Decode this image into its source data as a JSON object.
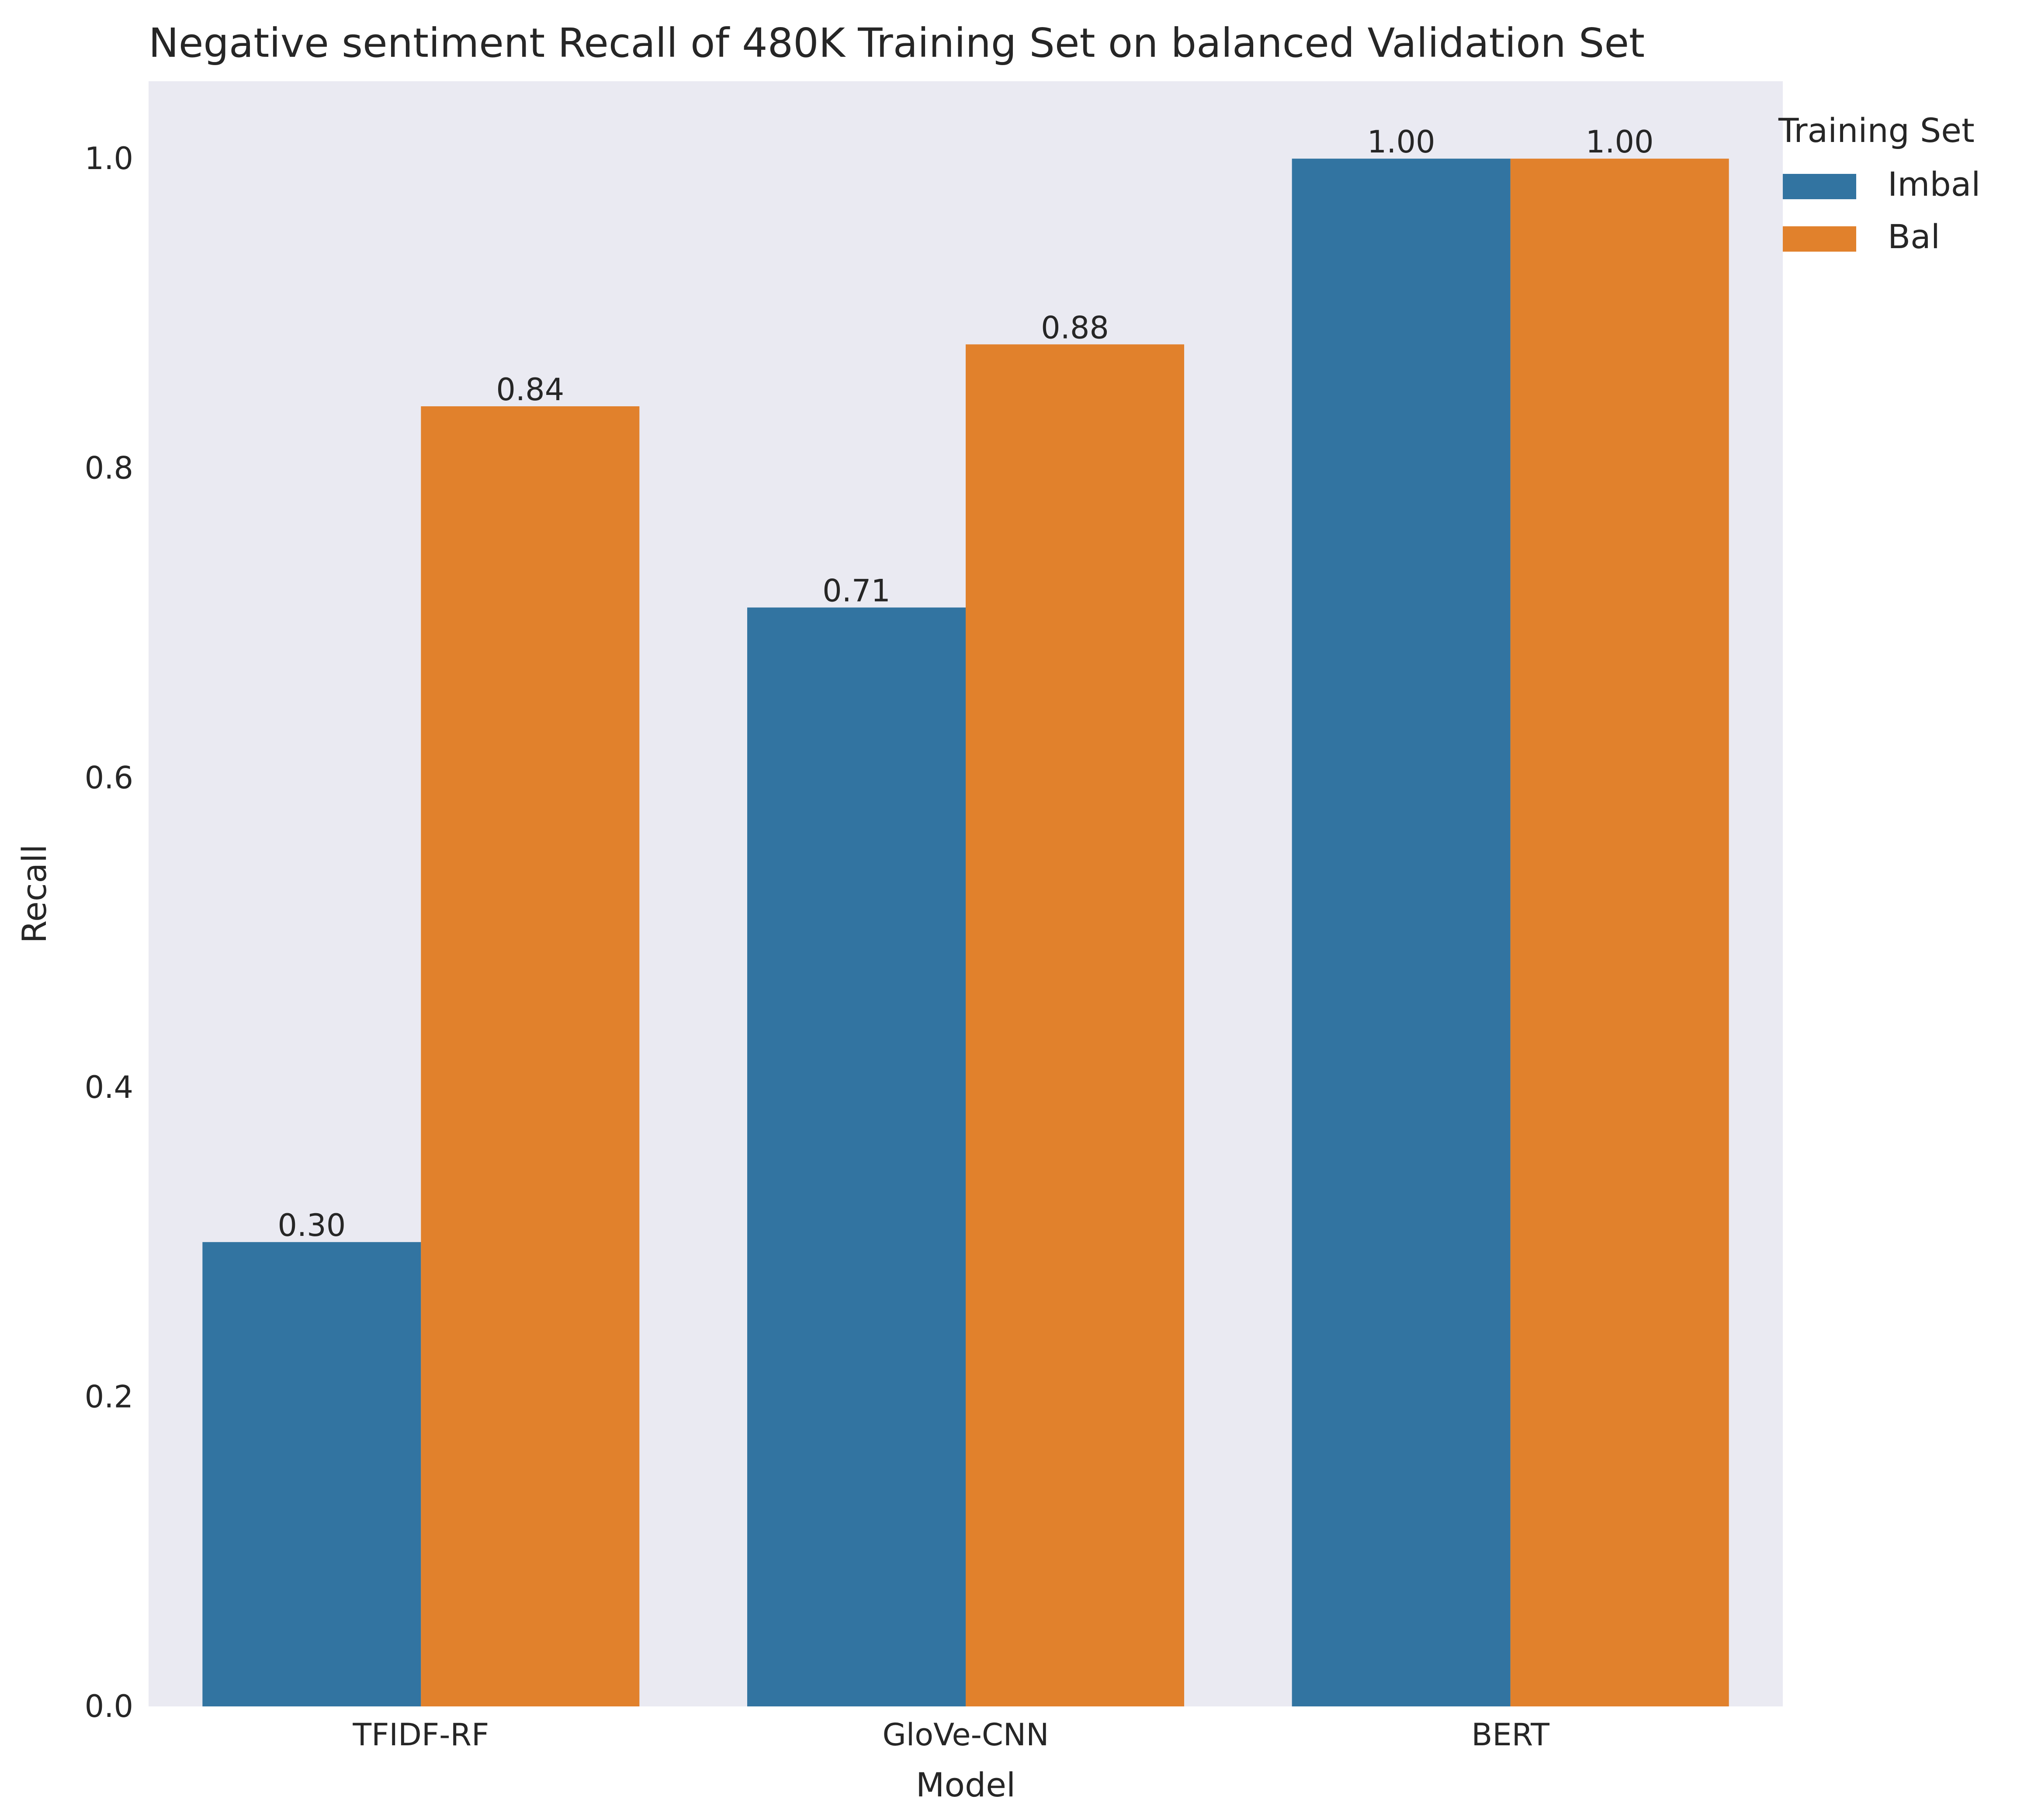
{
  "chart_data": {
    "type": "bar",
    "title": "Negative sentiment Recall of 480K Training Set on balanced Validation Set",
    "xlabel": "Model",
    "ylabel": "Recall",
    "categories": [
      "TFIDF-RF",
      "GloVe-CNN",
      "BERT"
    ],
    "series": [
      {
        "name": "Imbal",
        "values": [
          0.3,
          0.71,
          1.0
        ],
        "color": "#3274a1",
        "labels": [
          "0.30",
          "0.71",
          "1.00"
        ]
      },
      {
        "name": "Bal",
        "values": [
          0.84,
          0.88,
          1.0
        ],
        "color": "#e1812c",
        "labels": [
          "0.84",
          "0.88",
          "1.00"
        ]
      }
    ],
    "ylim": [
      0,
      1.05
    ],
    "yticks": [
      0.0,
      0.2,
      0.4,
      0.6,
      0.8,
      1.0
    ],
    "ytick_labels": [
      "0.0",
      "0.2",
      "0.4",
      "0.6",
      "0.8",
      "1.0"
    ],
    "grid": false,
    "background": "#eaeaf2",
    "legend": {
      "title": "Training Set",
      "placement": "upper right, outside plot"
    }
  }
}
